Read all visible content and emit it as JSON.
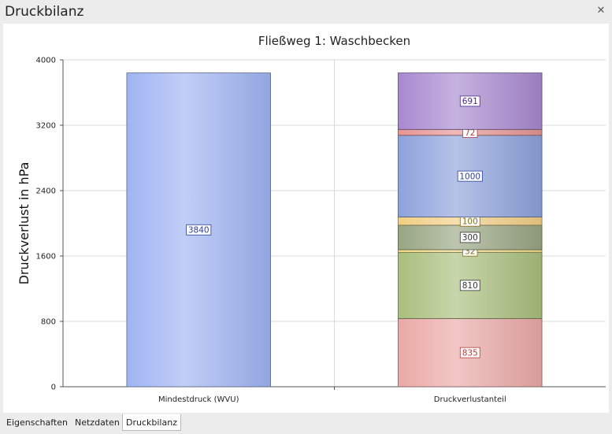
{
  "window": {
    "title": "Druckbilanz",
    "close_icon": "close-icon"
  },
  "tabs": [
    {
      "label": "Eigenschaften",
      "active": false
    },
    {
      "label": "Netzdaten",
      "active": false
    },
    {
      "label": "Druckbilanz",
      "active": true
    }
  ],
  "chart_data": {
    "type": "bar",
    "stacked": true,
    "title": "Fließweg 1: Waschbecken",
    "xlabel": "",
    "ylabel": "Druckverlust in hPa",
    "ylim": [
      0,
      4000
    ],
    "yticks": [
      0,
      800,
      1600,
      2400,
      3200,
      4000
    ],
    "grid": true,
    "categories": [
      "Mindestdruck (WVU)",
      "Druckverlustanteil"
    ],
    "bars": [
      {
        "category": "Mindestdruck (WVU)",
        "segments": [
          {
            "value": 3840,
            "color": "#9fb4f3",
            "label_color": "#2a3f9a"
          }
        ]
      },
      {
        "category": "Druckverlustanteil",
        "segments": [
          {
            "value": 835,
            "color": "#eaa9a6",
            "label_color": "#b23a3a"
          },
          {
            "value": 810,
            "color": "#a9bf7c",
            "label_color": "#333333"
          },
          {
            "value": 32,
            "color": "#f2dd8a",
            "label_color": "#8a6a10"
          },
          {
            "value": 300,
            "color": "#98a582",
            "label_color": "#333333"
          },
          {
            "value": 100,
            "color": "#f1ce84",
            "label_color": "#8a6a10"
          },
          {
            "value": 1000,
            "color": "#8da2dc",
            "label_color": "#2a3f9a"
          },
          {
            "value": 72,
            "color": "#e59593",
            "label_color": "#b23a3a"
          },
          {
            "value": 691,
            "color": "#a888d0",
            "label_color": "#4a2a8a"
          }
        ]
      }
    ]
  }
}
